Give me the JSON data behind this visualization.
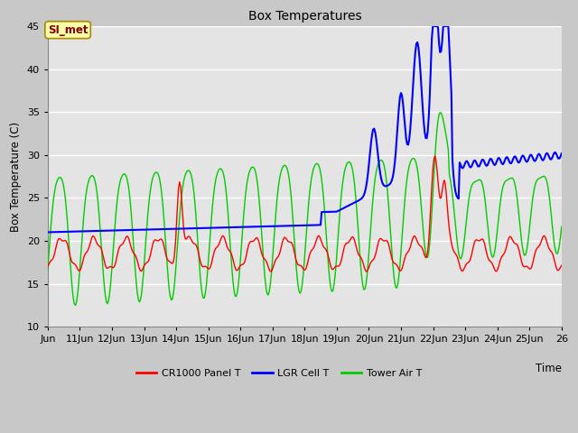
{
  "title": "Box Temperatures",
  "xlabel": "Time",
  "ylabel": "Box Temperature (C)",
  "ylim": [
    10,
    45
  ],
  "bg_color": "#cccccc",
  "plot_bg_color": "#e8e8e8",
  "grid_color": "white",
  "annotation_text": "SI_met",
  "annotation_bg": "#ffffaa",
  "annotation_fg": "#880000",
  "x_tick_labels": [
    "Jun",
    "11Jun",
    "12Jun",
    "13Jun",
    "14Jun",
    "15Jun",
    "16Jun",
    "17Jun",
    "18Jun",
    "19Jun",
    "20Jun",
    "21Jun",
    "22Jun",
    "23Jun",
    "24Jun",
    "25Jun"
  ],
  "x_tick_extra": "26",
  "cr1000_color": "#ff0000",
  "lgr_color": "#0000ff",
  "tower_color": "#00cc00",
  "cr1000_label": "CR1000 Panel T",
  "lgr_label": "LGR Cell T",
  "tower_label": "Tower Air T",
  "n_points": 500
}
